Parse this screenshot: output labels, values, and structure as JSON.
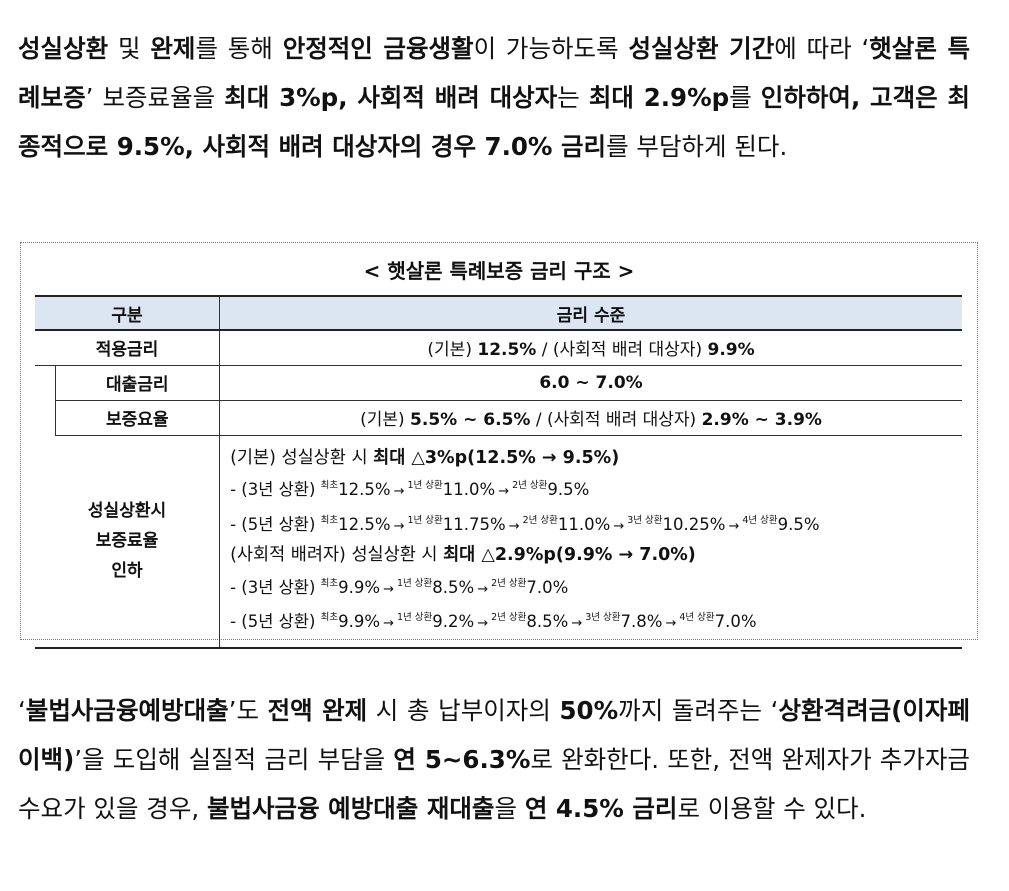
{
  "para1": {
    "s1": "성실상환",
    "s2": " 및 ",
    "s3": "완제",
    "s4": "를 통해 ",
    "s5": "안정적인 금융생활",
    "s6": "이 가능하도록 ",
    "s7": "성실상환 기간",
    "s8": "에 따라 ‘",
    "s9": "햇살론 특례보증",
    "s10": "’ 보증료율을 ",
    "s11": "최대 3%p, 사회적 배려 대상자",
    "s12": "는 ",
    "s13": "최대 2.9%p",
    "s14": "를 ",
    "s15": "인하하여, 고객은 최종적으로 9.5%, 사회적 배려 대상자의 경우 7.0% 금리",
    "s16": "를 부담하게 된다."
  },
  "box": {
    "title": "< 햇살론 특례보증 금리 구조 >",
    "header": {
      "col1": "구분",
      "col2": "금리 수준"
    },
    "rows": {
      "applied": {
        "label": "적용금리",
        "v1": "(기본) ",
        "v2": "12.5%",
        "v3": " / (사회적 배려 대상자) ",
        "v4": "9.9%"
      },
      "loan": {
        "label": "대출금리",
        "v1": "6.0 ~ 7.0%"
      },
      "fee": {
        "label": "보증요율",
        "v1": "(기본) ",
        "v2": "5.5% ~ 6.5%",
        "v3": " / (사회적 배려 대상자) ",
        "v4": "2.9% ~ 3.9%"
      }
    },
    "reduction": {
      "label_l1": "성실상환시",
      "label_l2": "보증료율",
      "label_l3": "인하",
      "basic_head": {
        "pre": "(기본) 성실상환 시 ",
        "bold": "최대 △3%p(12.5% → 9.5%)"
      },
      "basic_3y": {
        "prefix": "- (3년 상환) ",
        "sup0": "최초",
        "v0": "12.5%",
        "sup1": "1년 상환",
        "v1": "11.0%",
        "sup2": "2년 상환",
        "v2": "9.5%"
      },
      "basic_5y": {
        "prefix": "- (5년 상환) ",
        "sup0": "최초",
        "v0": "12.5%",
        "sup1": "1년 상환",
        "v1": "11.75%",
        "sup2": "2년 상환",
        "v2": "11.0%",
        "sup3": "3년 상환",
        "v3": "10.25%",
        "sup4": "4년 상환",
        "v4": "9.5%"
      },
      "social_head": {
        "pre": "(사회적 배려자) 성실상환 시 ",
        "bold": "최대 △2.9%p(9.9% → 7.0%)"
      },
      "social_3y": {
        "prefix": "- (3년 상환) ",
        "sup0": "최초",
        "v0": "9.9%",
        "sup1": "1년 상환",
        "v1": "8.5%",
        "sup2": "2년 상환",
        "v2": "7.0%"
      },
      "social_5y": {
        "prefix": "- (5년 상환) ",
        "sup0": "최초",
        "v0": "9.9%",
        "sup1": "1년 상환",
        "v1": "9.2%",
        "sup2": "2년 상환",
        "v2": "8.5%",
        "sup3": "3년 상환",
        "v3": "7.8%",
        "sup4": "4년 상환",
        "v4": "7.0%"
      },
      "arrow": "→"
    }
  },
  "para2": {
    "s1": " ‘",
    "s2": "불법사금융예방대출",
    "s3": "’도 ",
    "s4": "전액 완제",
    "s5": " 시 총 납부이자의 ",
    "s6": "50%",
    "s7": "까지 돌려주는 ‘",
    "s8": "상환격려금(이자페이백)",
    "s9": "’을 도입해 실질적 금리 부담을 ",
    "s10": "연 5~6.3%",
    "s11": "로 완화한다. 또한, 전액 완제자가 추가자금 수요가 있을 경우, ",
    "s12": "불법사금융 예방대출 재대출",
    "s13": "을 ",
    "s14": "연 4.5% 금리",
    "s15": "로 이용할 수 있다."
  }
}
